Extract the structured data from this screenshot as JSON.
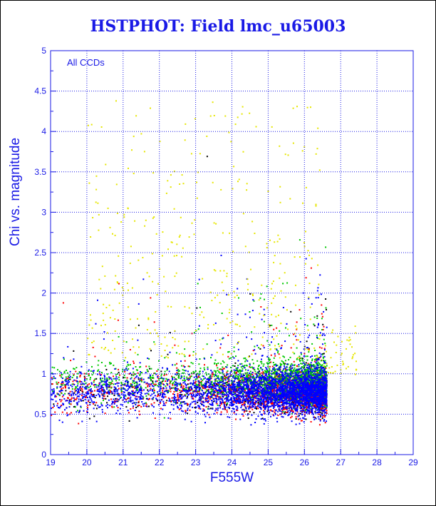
{
  "chart_data": {
    "type": "scatter",
    "title": "HSTPHOT: Field lmc_u65003",
    "xlabel": "F555W",
    "ylabel": "Chi vs. magnitude",
    "annotation": "All CCDs",
    "xlim": [
      19,
      29
    ],
    "ylim": [
      0,
      5
    ],
    "x_ticks": [
      19,
      20,
      21,
      22,
      23,
      24,
      25,
      26,
      27,
      28,
      29
    ],
    "y_ticks": [
      0,
      0.5,
      1,
      1.5,
      2,
      2.5,
      3,
      3.5,
      4,
      4.5,
      5
    ],
    "x_tick_labels": [
      "19",
      "20",
      "21",
      "22",
      "23",
      "24",
      "25",
      "26",
      "27",
      "28",
      "29"
    ],
    "y_tick_labels": [
      "0",
      "0.5",
      "1",
      "1.5",
      "2",
      "2.5",
      "3",
      "3.5",
      "4",
      "4.5",
      "5"
    ],
    "grid": true,
    "series": [
      {
        "color": "#000000",
        "point_count": 600,
        "sample": [
          [
            19.4,
            0.8
          ],
          [
            20.5,
            0.7
          ],
          [
            21.8,
            0.9
          ],
          [
            22.6,
            0.75
          ],
          [
            23.3,
            0.8
          ],
          [
            23.3,
            3.7
          ],
          [
            24.2,
            0.85
          ],
          [
            25.1,
            0.7
          ],
          [
            26.0,
            0.75
          ]
        ]
      },
      {
        "color": "#ff0000",
        "point_count": 1800,
        "sample": [
          [
            19.2,
            0.9
          ],
          [
            20.4,
            0.75
          ],
          [
            21.5,
            0.8
          ],
          [
            22.4,
            0.7
          ],
          [
            23.5,
            0.75
          ],
          [
            24.5,
            0.65
          ],
          [
            25.5,
            0.6
          ],
          [
            26.3,
            0.6
          ]
        ]
      },
      {
        "color": "#00c800",
        "point_count": 1800,
        "sample": [
          [
            19.3,
            1.0
          ],
          [
            20.6,
            0.9
          ],
          [
            21.7,
            1.1
          ],
          [
            22.8,
            0.95
          ],
          [
            23.6,
            0.9
          ],
          [
            24.6,
            0.95
          ],
          [
            25.6,
            0.9
          ],
          [
            26.2,
            0.85
          ]
        ]
      },
      {
        "color": "#0000ff",
        "point_count": 3500,
        "sample": [
          [
            19.5,
            0.6
          ],
          [
            20.8,
            0.7
          ],
          [
            22.0,
            0.8
          ],
          [
            23.0,
            0.75
          ],
          [
            24.0,
            0.75
          ],
          [
            25.0,
            0.7
          ],
          [
            26.0,
            0.75
          ],
          [
            26.5,
            0.7
          ]
        ]
      },
      {
        "color": "#e6e600",
        "point_count": 400,
        "sample": [
          [
            20.5,
            3.6
          ],
          [
            21.3,
            2.9
          ],
          [
            22.7,
            4.1
          ],
          [
            23.8,
            4.2
          ],
          [
            24.0,
            3.3
          ],
          [
            24.5,
            2.3
          ],
          [
            25.5,
            1.8
          ],
          [
            26.8,
            1.4
          ],
          [
            27.3,
            1.2
          ]
        ]
      }
    ]
  }
}
